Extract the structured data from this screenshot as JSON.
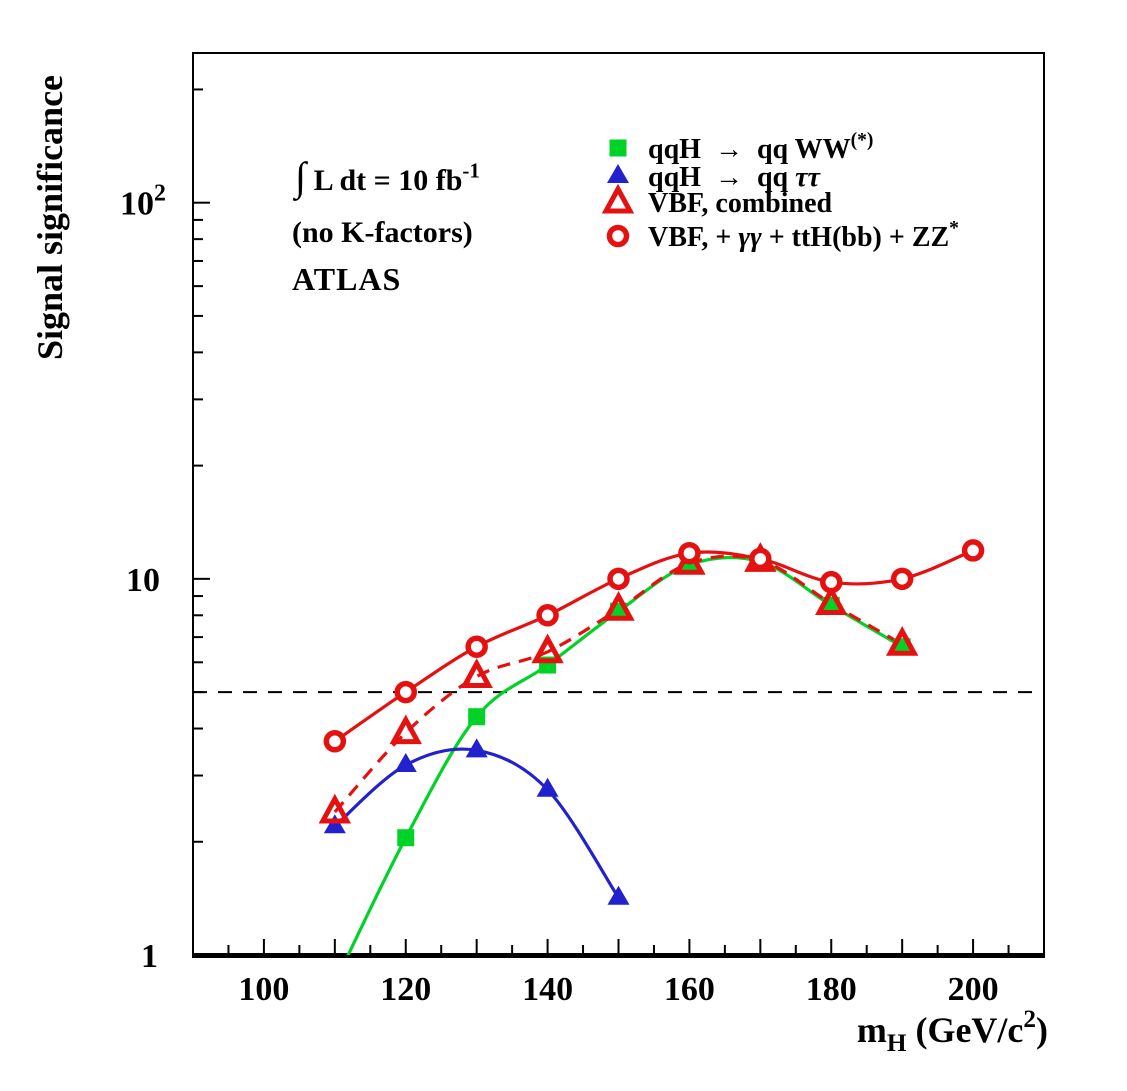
{
  "accent_colors": {
    "green": "#00D228",
    "blue": "#2121CE",
    "red": "#E51111",
    "black": "#000000"
  },
  "annotations": {
    "luminosity_segments": [
      {
        "t": "∫",
        "s": "int"
      },
      {
        "t": " L dt = 10 fb"
      },
      {
        "t": "-1",
        "s": "sup"
      }
    ],
    "no_k_factors": "(no K-factors)",
    "experiment": "ATLAS"
  },
  "legend": {
    "items": [
      {
        "marker": "square-filled",
        "color": "#00D228",
        "segments": [
          {
            "t": "qqH  "
          },
          {
            "t": "→"
          },
          {
            "t": "  qq WW"
          },
          {
            "t": "(*)",
            "s": "sup"
          }
        ],
        "label": "qqH -> qq WW(*)"
      },
      {
        "marker": "triangle-filled",
        "color": "#2121CE",
        "segments": [
          {
            "t": "qqH  "
          },
          {
            "t": "→"
          },
          {
            "t": "  qq "
          },
          {
            "t": "ττ",
            "s": "i"
          }
        ],
        "label": "qqH -> qq tautau"
      },
      {
        "marker": "triangle-open",
        "color": "#E51111",
        "segments": [
          {
            "t": "VBF, combined"
          }
        ],
        "label": "VBF, combined"
      },
      {
        "marker": "circle-open",
        "color": "#E51111",
        "segments": [
          {
            "t": "VBF, + "
          },
          {
            "t": "γγ",
            "s": "i"
          },
          {
            "t": " + ttH(bb) + ZZ"
          },
          {
            "t": "*",
            "s": "sup"
          }
        ],
        "label": "VBF, + gammagamma + ttH(bb) + ZZ*"
      }
    ]
  },
  "chart_data": {
    "type": "line",
    "title": "",
    "xlabel": "mH (GeV/c2)",
    "xlabel_segments": [
      {
        "t": "m"
      },
      {
        "t": "H",
        "s": "sub"
      },
      {
        "t": " (GeV/c"
      },
      {
        "t": "2",
        "s": "sup"
      },
      {
        "t": ")"
      }
    ],
    "ylabel": "Signal significance",
    "x_range": [
      90,
      210
    ],
    "y_scale": "log",
    "y_range": [
      1,
      250
    ],
    "grid": false,
    "legend_position": "top-right",
    "x_major_tick_step": 10,
    "x_minor_tick_step": 5,
    "x_tick_label_values": [
      100,
      120,
      140,
      160,
      180,
      200
    ],
    "y_tick_labels": [
      {
        "value": 1,
        "x": 141,
        "segments": [
          {
            "t": "1"
          }
        ]
      },
      {
        "value": 10,
        "x": 126,
        "segments": [
          {
            "t": "10"
          }
        ]
      },
      {
        "value": 100,
        "x": 120,
        "segments": [
          {
            "t": "10"
          },
          {
            "t": "2",
            "s": "sup"
          }
        ]
      }
    ],
    "threshold_line": {
      "value": 5,
      "style": "dashed",
      "color": "#000000"
    },
    "series": [
      {
        "name": "qqH -> qq WW(*)",
        "color": "#00D228",
        "line": "solid",
        "marker": "square-filled",
        "tail": [
          [
            109.7,
            0.82
          ]
        ],
        "points": [
          [
            120,
            2.05
          ],
          [
            130,
            4.3
          ],
          [
            140,
            5.9
          ],
          [
            150,
            8.2
          ],
          [
            160,
            10.9
          ],
          [
            170,
            11.1
          ],
          [
            180,
            8.5
          ],
          [
            190,
            6.6
          ]
        ]
      },
      {
        "name": "qqH -> qq tautau",
        "color": "#2121CE",
        "line": "solid",
        "marker": "triangle-filled",
        "points": [
          [
            110,
            2.2
          ],
          [
            120,
            3.2
          ],
          [
            130,
            3.5
          ],
          [
            140,
            2.75
          ],
          [
            150,
            1.42
          ]
        ]
      },
      {
        "name": "VBF, combined",
        "color": "#E51111",
        "line": "dashed",
        "marker": "triangle-open",
        "points": [
          [
            110,
            2.4
          ],
          [
            120,
            3.9
          ],
          [
            130,
            5.5
          ],
          [
            140,
            6.4
          ],
          [
            150,
            8.3
          ],
          [
            160,
            11.0
          ],
          [
            170,
            11.2
          ],
          [
            180,
            8.6
          ],
          [
            190,
            6.7
          ]
        ]
      },
      {
        "name": "VBF, + gammagamma + ttH(bb) + ZZ*",
        "color": "#E51111",
        "line": "solid",
        "marker": "circle-open",
        "points": [
          [
            110,
            3.7
          ],
          [
            120,
            5.0
          ],
          [
            130,
            6.6
          ],
          [
            140,
            8.0
          ],
          [
            150,
            10.0
          ],
          [
            160,
            11.7
          ],
          [
            170,
            11.3
          ],
          [
            180,
            9.8
          ],
          [
            190,
            10.0
          ],
          [
            200,
            11.9
          ]
        ]
      }
    ]
  }
}
